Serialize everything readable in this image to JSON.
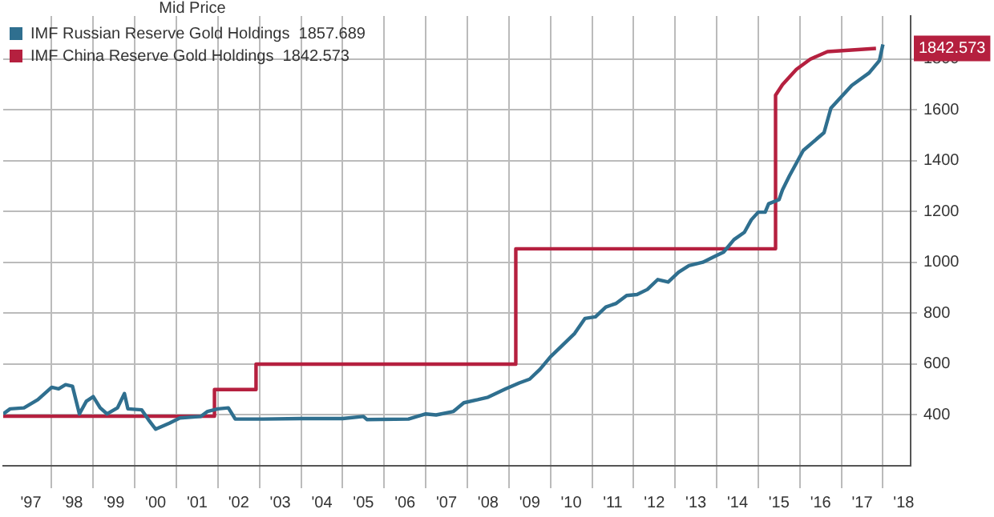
{
  "chart_data": {
    "type": "line",
    "legend_title": "Mid Price",
    "legend": "top left",
    "grid": true,
    "marker": "none",
    "line_style": "solid",
    "xlim": [
      "1996-11",
      "2018-09"
    ],
    "ylim": [
      200,
      1970
    ],
    "yticks": [
      400,
      600,
      800,
      1000,
      1200,
      1400,
      1600,
      1800
    ],
    "xticks": [
      {
        "value": "1997-07",
        "label": "'97"
      },
      {
        "value": "1998",
        "label": null
      },
      {
        "value": "1998-07",
        "label": "'98"
      },
      {
        "value": "1999",
        "label": null
      },
      {
        "value": "1999-07",
        "label": "'99"
      },
      {
        "value": "2000",
        "label": null
      },
      {
        "value": "2000-07",
        "label": "'00"
      },
      {
        "value": "2001",
        "label": null
      },
      {
        "value": "2001-07",
        "label": "'01"
      },
      {
        "value": "2002",
        "label": null
      },
      {
        "value": "2002-07",
        "label": "'02"
      },
      {
        "value": "2003",
        "label": null
      },
      {
        "value": "2003-07",
        "label": "'03"
      },
      {
        "value": "2004",
        "label": null
      },
      {
        "value": "2004-07",
        "label": "'04"
      },
      {
        "value": "2005",
        "label": null
      },
      {
        "value": "2005-07",
        "label": "'05"
      },
      {
        "value": "2006",
        "label": null
      },
      {
        "value": "2006-07",
        "label": "'06"
      },
      {
        "value": "2007",
        "label": null
      },
      {
        "value": "2007-07",
        "label": "'07"
      },
      {
        "value": "2008",
        "label": null
      },
      {
        "value": "2008-07",
        "label": "'08"
      },
      {
        "value": "2009",
        "label": null
      },
      {
        "value": "2009-07",
        "label": "'09"
      },
      {
        "value": "2010",
        "label": null
      },
      {
        "value": "2010-07",
        "label": "'10"
      },
      {
        "value": "2011",
        "label": null
      },
      {
        "value": "2011-07",
        "label": "'11"
      },
      {
        "value": "2012",
        "label": null
      },
      {
        "value": "2012-07",
        "label": "'12"
      },
      {
        "value": "2013",
        "label": null
      },
      {
        "value": "2013-07",
        "label": "'13"
      },
      {
        "value": "2014",
        "label": null
      },
      {
        "value": "2014-07",
        "label": "'14"
      },
      {
        "value": "2015",
        "label": null
      },
      {
        "value": "2015-07",
        "label": "'15"
      },
      {
        "value": "2016",
        "label": null
      },
      {
        "value": "2016-07",
        "label": "'16"
      },
      {
        "value": "2017",
        "label": null
      },
      {
        "value": "2017-07",
        "label": "'17"
      },
      {
        "value": "2018",
        "label": null
      },
      {
        "value": "2018-07",
        "label": "'18"
      }
    ],
    "series": [
      {
        "name": "IMF Russian Reserve Gold Holdings  1857.689",
        "color": "#2f6f8f",
        "x": [
          "1996-11",
          "1997-01",
          "1997-05",
          "1997-09",
          "1998-01",
          "1998-03",
          "1998-05",
          "1998-07",
          "1998-09",
          "1998-11",
          "1999-01",
          "1999-03",
          "1999-05",
          "1999-08",
          "1999-10",
          "1999-11",
          "2000-03",
          "2000-05",
          "2000-07",
          "2000-11",
          "2001-02",
          "2001-08",
          "2001-10",
          "2002-01",
          "2002-04",
          "2002-06",
          "2003-02",
          "2004-01",
          "2005-01",
          "2005-07",
          "2005-08",
          "2006-08",
          "2007-01",
          "2007-04",
          "2007-09",
          "2007-12",
          "2008-04",
          "2008-07",
          "2008-12",
          "2009-04",
          "2009-07",
          "2009-10",
          "2010-01",
          "2010-04",
          "2010-08",
          "2010-11",
          "2011-02",
          "2011-05",
          "2011-08",
          "2011-11",
          "2012-02",
          "2012-05",
          "2012-08",
          "2012-11",
          "2013-02",
          "2013-05",
          "2013-09",
          "2013-12",
          "2014-03",
          "2014-06",
          "2014-09",
          "2014-11",
          "2015-01",
          "2015-03",
          "2015-04",
          "2015-07",
          "2015-08",
          "2015-10",
          "2016-02",
          "2016-08",
          "2016-10",
          "2017-04",
          "2017-09",
          "2017-12",
          "2018-01"
        ],
        "values": [
          404,
          424,
          428,
          460,
          509,
          503,
          519,
          513,
          404,
          454,
          472,
          428,
          404,
          428,
          484,
          424,
          420,
          380,
          344,
          368,
          388,
          394,
          414,
          424,
          428,
          384,
          384,
          386,
          386,
          394,
          382,
          384,
          404,
          400,
          414,
          448,
          460,
          470,
          502,
          526,
          541,
          580,
          629,
          668,
          721,
          780,
          786,
          825,
          839,
          870,
          874,
          894,
          933,
          923,
          962,
          988,
          1001,
          1021,
          1041,
          1090,
          1119,
          1168,
          1198,
          1198,
          1231,
          1247,
          1286,
          1341,
          1441,
          1511,
          1608,
          1697,
          1746,
          1795,
          1858
        ]
      },
      {
        "name": "IMF China Reserve Gold Holdings  1842.573",
        "color": "#b5203f",
        "x": [
          "1996-11",
          "2001-12",
          "2001-12",
          "2002-12",
          "2002-12",
          "2009-03",
          "2009-03",
          "2015-06",
          "2015-06",
          "2015-08",
          "2015-12",
          "2016-04",
          "2016-09",
          "2017-11"
        ],
        "values": [
          395,
          395,
          500,
          500,
          600,
          600,
          1054,
          1054,
          1658,
          1700,
          1760,
          1800,
          1830,
          1842.573
        ]
      }
    ],
    "annotations": [
      "1842.573"
    ]
  }
}
